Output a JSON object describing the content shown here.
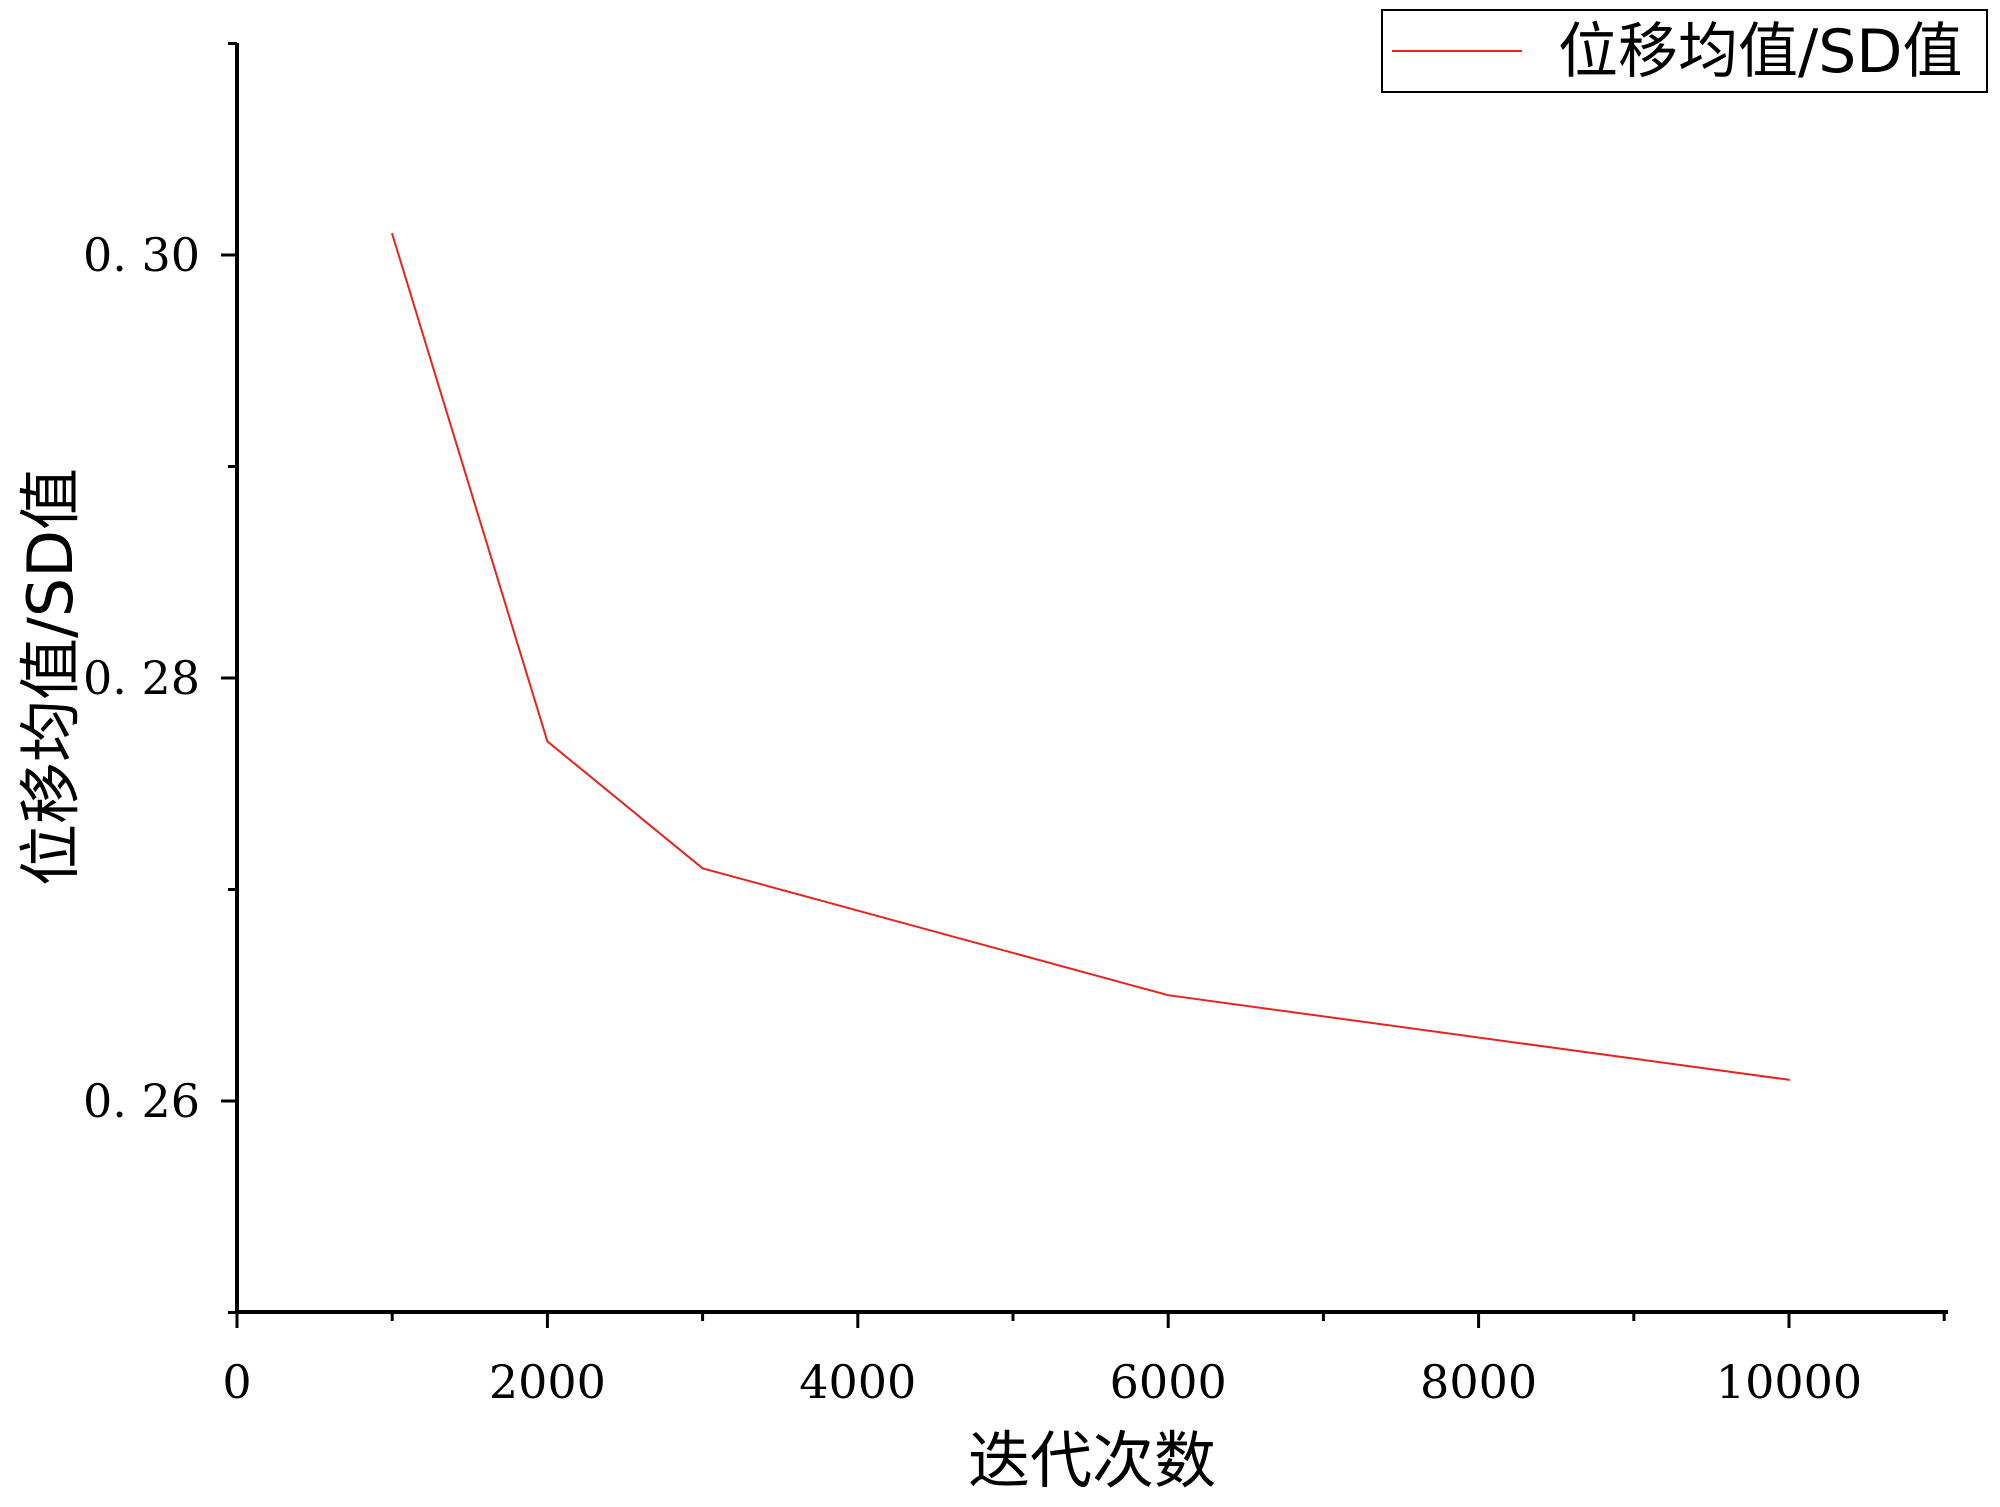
{
  "chart_data": {
    "type": "line",
    "title": "",
    "xlabel": "迭代次数",
    "ylabel": "位移均值/SD值",
    "xlim": [
      0,
      11000
    ],
    "ylim": [
      0.25,
      0.31
    ],
    "xticks": [
      0,
      2000,
      4000,
      6000,
      8000,
      10000
    ],
    "xtick_labels": [
      "0",
      "2000",
      "4000",
      "6000",
      "8000",
      "10000"
    ],
    "xminor_ticks": [
      1000,
      3000,
      5000,
      7000,
      9000,
      11000
    ],
    "yticks": [
      0.26,
      0.28,
      0.3
    ],
    "ytick_labels": [
      "0. 26",
      "0. 28",
      "0. 30"
    ],
    "yminor_ticks": [
      0.25,
      0.27,
      0.29,
      0.31
    ],
    "grid": false,
    "legend": "top-right",
    "series": [
      {
        "name": "位移均值/SD值",
        "color": "#e8231f",
        "x": [
          1000,
          2000,
          3000,
          6000,
          10000
        ],
        "y": [
          0.301,
          0.277,
          0.271,
          0.265,
          0.261
        ]
      }
    ]
  }
}
